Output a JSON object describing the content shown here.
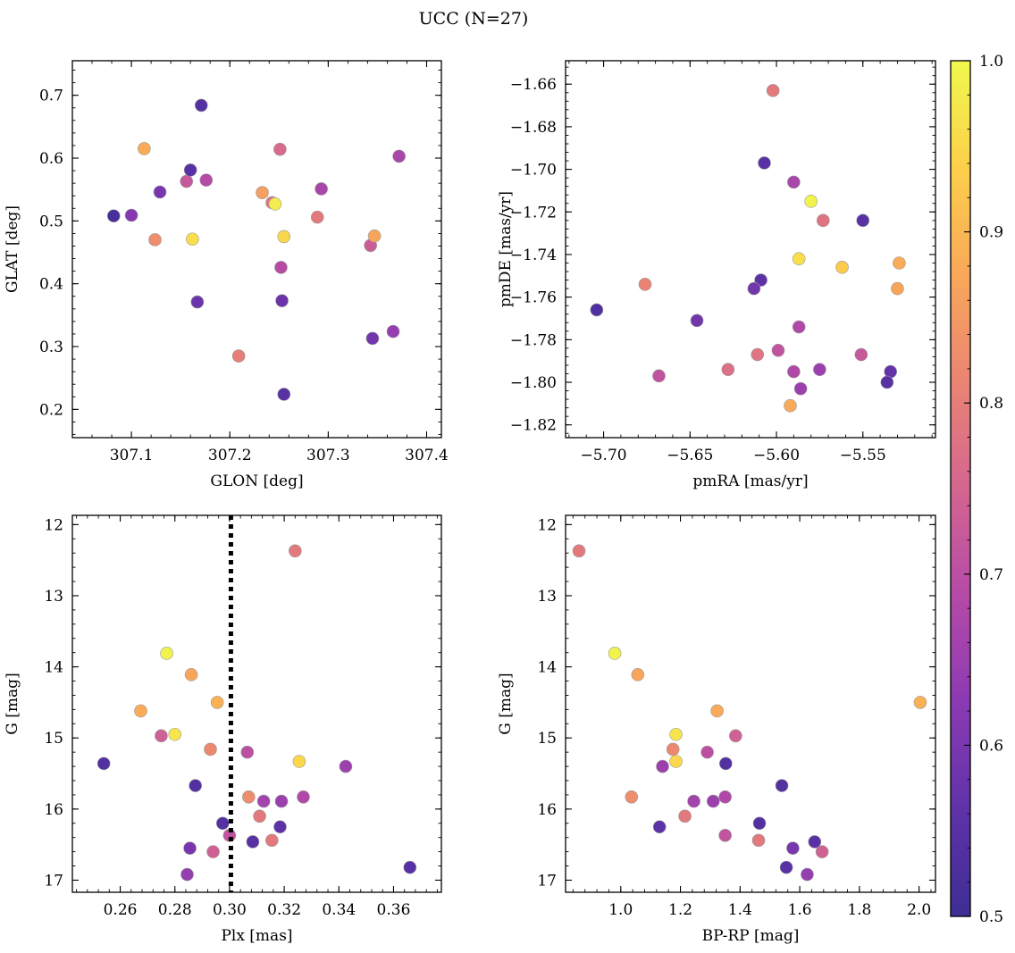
{
  "figure": {
    "title": "UCC (N=27)"
  },
  "colorbar": {
    "colormap": "plasma",
    "stops": [
      "#3e2e94",
      "#5f32a8",
      "#8b3ab3",
      "#b54aa7",
      "#d46690",
      "#ea8473",
      "#f9a85a",
      "#fccf4a",
      "#f0f94e"
    ],
    "range": [
      0.5,
      1.0
    ],
    "ticks": [
      0.5,
      0.6,
      0.7,
      0.8,
      0.9,
      1.0
    ],
    "tick_labels": [
      "0.5",
      "0.6",
      "0.7",
      "0.8",
      "0.9",
      "1.0"
    ]
  },
  "chart_data": [
    {
      "type": "scatter",
      "panel": "top-left",
      "xlabel": "GLON [deg]",
      "ylabel": "GLAT [deg]",
      "xlim": [
        307.04,
        307.415
      ],
      "ylim": [
        0.155,
        0.755
      ],
      "xticks": [
        307.1,
        307.2,
        307.3,
        307.4
      ],
      "xtick_labels": [
        "307.1",
        "307.2",
        "307.3",
        "307.4"
      ],
      "yticks": [
        0.2,
        0.3,
        0.4,
        0.5,
        0.6,
        0.7
      ],
      "ytick_labels": [
        "0.2",
        "0.3",
        "0.4",
        "0.5",
        "0.6",
        "0.7"
      ],
      "points": [
        {
          "x": 307.082,
          "y": 0.508,
          "c": 0.52
        },
        {
          "x": 307.1,
          "y": 0.509,
          "c": 0.62
        },
        {
          "x": 307.113,
          "y": 0.615,
          "c": 0.88
        },
        {
          "x": 307.124,
          "y": 0.47,
          "c": 0.83
        },
        {
          "x": 307.129,
          "y": 0.546,
          "c": 0.6
        },
        {
          "x": 307.156,
          "y": 0.563,
          "c": 0.72
        },
        {
          "x": 307.16,
          "y": 0.581,
          "c": 0.55
        },
        {
          "x": 307.162,
          "y": 0.471,
          "c": 0.96
        },
        {
          "x": 307.167,
          "y": 0.371,
          "c": 0.58
        },
        {
          "x": 307.171,
          "y": 0.684,
          "c": 0.54
        },
        {
          "x": 307.176,
          "y": 0.565,
          "c": 0.69
        },
        {
          "x": 307.209,
          "y": 0.285,
          "c": 0.8
        },
        {
          "x": 307.233,
          "y": 0.545,
          "c": 0.86
        },
        {
          "x": 307.243,
          "y": 0.529,
          "c": 0.78
        },
        {
          "x": 307.246,
          "y": 0.527,
          "c": 0.98
        },
        {
          "x": 307.251,
          "y": 0.614,
          "c": 0.76
        },
        {
          "x": 307.252,
          "y": 0.426,
          "c": 0.69
        },
        {
          "x": 307.253,
          "y": 0.373,
          "c": 0.58
        },
        {
          "x": 307.255,
          "y": 0.475,
          "c": 0.95
        },
        {
          "x": 307.255,
          "y": 0.224,
          "c": 0.55
        },
        {
          "x": 307.289,
          "y": 0.506,
          "c": 0.79
        },
        {
          "x": 307.293,
          "y": 0.551,
          "c": 0.67
        },
        {
          "x": 307.343,
          "y": 0.461,
          "c": 0.73
        },
        {
          "x": 307.345,
          "y": 0.313,
          "c": 0.59
        },
        {
          "x": 307.347,
          "y": 0.476,
          "c": 0.87
        },
        {
          "x": 307.366,
          "y": 0.324,
          "c": 0.64
        },
        {
          "x": 307.372,
          "y": 0.603,
          "c": 0.67
        }
      ]
    },
    {
      "type": "scatter",
      "panel": "top-right",
      "xlabel": "pmRA [mas/yr]",
      "ylabel": "pmDE [mas/yr]",
      "xlim": [
        -5.722,
        -5.508
      ],
      "ylim": [
        -1.826,
        -1.649
      ],
      "xticks": [
        -5.7,
        -5.65,
        -5.6,
        -5.55
      ],
      "xtick_labels": [
        "−5.70",
        "−5.65",
        "−5.60",
        "−5.55"
      ],
      "yticks": [
        -1.82,
        -1.8,
        -1.78,
        -1.76,
        -1.74,
        -1.72,
        -1.7,
        -1.68,
        -1.66
      ],
      "ytick_labels": [
        "−1.82",
        "−1.80",
        "−1.78",
        "−1.76",
        "−1.74",
        "−1.72",
        "−1.70",
        "−1.68",
        "−1.66"
      ],
      "points": [
        {
          "x": -5.602,
          "y": -1.663,
          "c": 0.79
        },
        {
          "x": -5.607,
          "y": -1.697,
          "c": 0.55
        },
        {
          "x": -5.59,
          "y": -1.706,
          "c": 0.67
        },
        {
          "x": -5.58,
          "y": -1.715,
          "c": 0.99
        },
        {
          "x": -5.573,
          "y": -1.724,
          "c": 0.78
        },
        {
          "x": -5.55,
          "y": -1.724,
          "c": 0.55
        },
        {
          "x": -5.587,
          "y": -1.742,
          "c": 0.96
        },
        {
          "x": -5.562,
          "y": -1.746,
          "c": 0.93
        },
        {
          "x": -5.529,
          "y": -1.744,
          "c": 0.88
        },
        {
          "x": -5.53,
          "y": -1.756,
          "c": 0.87
        },
        {
          "x": -5.676,
          "y": -1.754,
          "c": 0.81
        },
        {
          "x": -5.609,
          "y": -1.752,
          "c": 0.56
        },
        {
          "x": -5.613,
          "y": -1.756,
          "c": 0.59
        },
        {
          "x": -5.704,
          "y": -1.766,
          "c": 0.53
        },
        {
          "x": -5.646,
          "y": -1.771,
          "c": 0.59
        },
        {
          "x": -5.587,
          "y": -1.774,
          "c": 0.68
        },
        {
          "x": -5.599,
          "y": -1.785,
          "c": 0.71
        },
        {
          "x": -5.611,
          "y": -1.787,
          "c": 0.78
        },
        {
          "x": -5.551,
          "y": -1.787,
          "c": 0.72
        },
        {
          "x": -5.628,
          "y": -1.794,
          "c": 0.77
        },
        {
          "x": -5.575,
          "y": -1.794,
          "c": 0.65
        },
        {
          "x": -5.59,
          "y": -1.795,
          "c": 0.68
        },
        {
          "x": -5.534,
          "y": -1.795,
          "c": 0.57
        },
        {
          "x": -5.668,
          "y": -1.797,
          "c": 0.71
        },
        {
          "x": -5.536,
          "y": -1.8,
          "c": 0.55
        },
        {
          "x": -5.586,
          "y": -1.803,
          "c": 0.65
        },
        {
          "x": -5.592,
          "y": -1.811,
          "c": 0.88
        }
      ]
    },
    {
      "type": "scatter",
      "panel": "bottom-left",
      "xlabel": "Plx [mas]",
      "ylabel": "G [mag]",
      "y_inverted": true,
      "xlim": [
        0.2425,
        0.3775
      ],
      "ylim": [
        17.17,
        11.87
      ],
      "xticks": [
        0.26,
        0.28,
        0.3,
        0.32,
        0.34,
        0.36
      ],
      "xtick_labels": [
        "0.26",
        "0.28",
        "0.30",
        "0.32",
        "0.34",
        "0.36"
      ],
      "yticks": [
        12,
        13,
        14,
        15,
        16,
        17
      ],
      "ytick_labels": [
        "12",
        "13",
        "14",
        "15",
        "16",
        "17"
      ],
      "vline": {
        "x": 0.3005,
        "style": "dotted"
      },
      "points": [
        {
          "x": 0.324,
          "y": 12.37,
          "c": 0.79
        },
        {
          "x": 0.277,
          "y": 13.81,
          "c": 0.99
        },
        {
          "x": 0.286,
          "y": 14.11,
          "c": 0.87
        },
        {
          "x": 0.2955,
          "y": 14.5,
          "c": 0.89
        },
        {
          "x": 0.2675,
          "y": 14.62,
          "c": 0.88
        },
        {
          "x": 0.275,
          "y": 14.97,
          "c": 0.74
        },
        {
          "x": 0.28,
          "y": 14.95,
          "c": 0.97
        },
        {
          "x": 0.293,
          "y": 15.16,
          "c": 0.82
        },
        {
          "x": 0.3065,
          "y": 15.2,
          "c": 0.7
        },
        {
          "x": 0.3255,
          "y": 15.33,
          "c": 0.95
        },
        {
          "x": 0.254,
          "y": 15.36,
          "c": 0.54
        },
        {
          "x": 0.3425,
          "y": 15.4,
          "c": 0.65
        },
        {
          "x": 0.2875,
          "y": 15.67,
          "c": 0.54
        },
        {
          "x": 0.307,
          "y": 15.83,
          "c": 0.83
        },
        {
          "x": 0.327,
          "y": 15.83,
          "c": 0.68
        },
        {
          "x": 0.3125,
          "y": 15.89,
          "c": 0.66
        },
        {
          "x": 0.319,
          "y": 15.89,
          "c": 0.65
        },
        {
          "x": 0.311,
          "y": 16.1,
          "c": 0.79
        },
        {
          "x": 0.2975,
          "y": 16.2,
          "c": 0.54
        },
        {
          "x": 0.3185,
          "y": 16.25,
          "c": 0.56
        },
        {
          "x": 0.3,
          "y": 16.37,
          "c": 0.71
        },
        {
          "x": 0.3155,
          "y": 16.44,
          "c": 0.79
        },
        {
          "x": 0.3085,
          "y": 16.46,
          "c": 0.55
        },
        {
          "x": 0.2855,
          "y": 16.55,
          "c": 0.6
        },
        {
          "x": 0.294,
          "y": 16.6,
          "c": 0.74
        },
        {
          "x": 0.366,
          "y": 16.82,
          "c": 0.55
        },
        {
          "x": 0.2845,
          "y": 16.92,
          "c": 0.64
        }
      ]
    },
    {
      "type": "scatter",
      "panel": "bottom-right",
      "xlabel": "BP-RP [mag]",
      "ylabel": "G [mag]",
      "y_inverted": true,
      "xlim": [
        0.815,
        2.055
      ],
      "ylim": [
        17.17,
        11.87
      ],
      "xticks": [
        1.0,
        1.2,
        1.4,
        1.6,
        1.8,
        2.0
      ],
      "xtick_labels": [
        "1.0",
        "1.2",
        "1.4",
        "1.6",
        "1.8",
        "2.0"
      ],
      "yticks": [
        12,
        13,
        14,
        15,
        16,
        17
      ],
      "ytick_labels": [
        "12",
        "13",
        "14",
        "15",
        "16",
        "17"
      ],
      "points": [
        {
          "x": 0.86,
          "y": 12.37,
          "c": 0.79
        },
        {
          "x": 0.98,
          "y": 13.81,
          "c": 0.99
        },
        {
          "x": 1.057,
          "y": 14.11,
          "c": 0.87
        },
        {
          "x": 2.004,
          "y": 14.5,
          "c": 0.89
        },
        {
          "x": 1.323,
          "y": 14.62,
          "c": 0.88
        },
        {
          "x": 1.385,
          "y": 14.97,
          "c": 0.74
        },
        {
          "x": 1.185,
          "y": 14.95,
          "c": 0.97
        },
        {
          "x": 1.175,
          "y": 15.16,
          "c": 0.82
        },
        {
          "x": 1.29,
          "y": 15.2,
          "c": 0.7
        },
        {
          "x": 1.185,
          "y": 15.33,
          "c": 0.95
        },
        {
          "x": 1.352,
          "y": 15.36,
          "c": 0.54
        },
        {
          "x": 1.14,
          "y": 15.4,
          "c": 0.65
        },
        {
          "x": 1.54,
          "y": 15.67,
          "c": 0.54
        },
        {
          "x": 1.036,
          "y": 15.83,
          "c": 0.83
        },
        {
          "x": 1.35,
          "y": 15.83,
          "c": 0.68
        },
        {
          "x": 1.245,
          "y": 15.89,
          "c": 0.66
        },
        {
          "x": 1.31,
          "y": 15.89,
          "c": 0.65
        },
        {
          "x": 1.215,
          "y": 16.1,
          "c": 0.79
        },
        {
          "x": 1.465,
          "y": 16.2,
          "c": 0.54
        },
        {
          "x": 1.13,
          "y": 16.25,
          "c": 0.56
        },
        {
          "x": 1.35,
          "y": 16.37,
          "c": 0.71
        },
        {
          "x": 1.462,
          "y": 16.44,
          "c": 0.79
        },
        {
          "x": 1.65,
          "y": 16.46,
          "c": 0.55
        },
        {
          "x": 1.577,
          "y": 16.55,
          "c": 0.6
        },
        {
          "x": 1.675,
          "y": 16.6,
          "c": 0.74
        },
        {
          "x": 1.555,
          "y": 16.82,
          "c": 0.55
        },
        {
          "x": 1.625,
          "y": 16.92,
          "c": 0.64
        }
      ]
    }
  ]
}
